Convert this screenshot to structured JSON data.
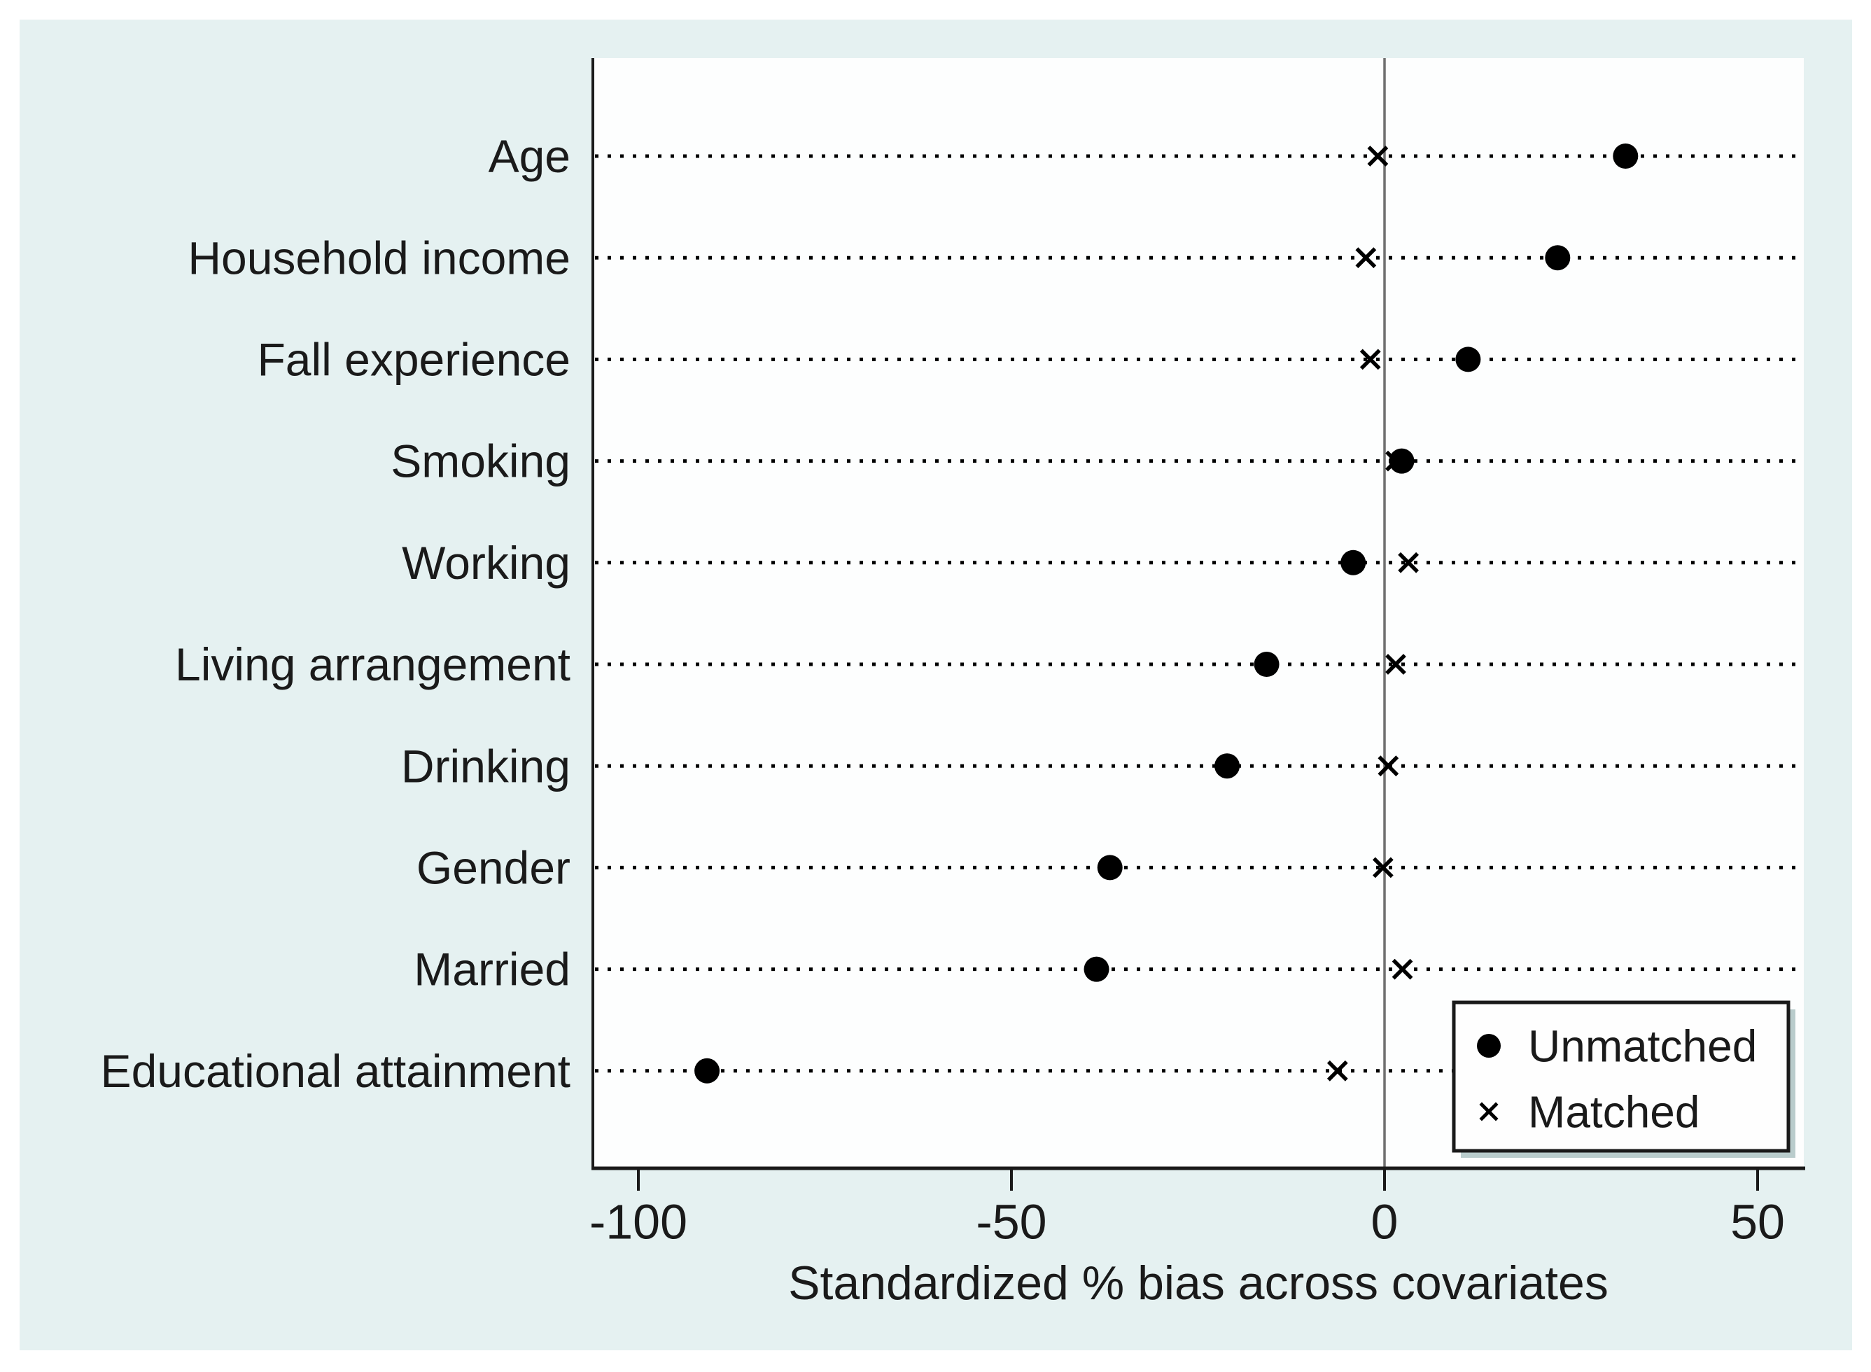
{
  "figure": {
    "kind": "propensity-score matching covariate balance dot plot",
    "xlabel": "Standardized % bias across covariates",
    "legend": {
      "unmatched_label": "Unmatched",
      "matched_label": "Matched"
    }
  },
  "chart_data": {
    "type": "scatter",
    "subtype": "horizontal-dot-plot",
    "title": "",
    "xlabel": "Standardized % bias across covariates",
    "ylabel": "",
    "categories": [
      "Age",
      "Household income",
      "Fall experience",
      "Smoking",
      "Working",
      "Living arrangement",
      "Drinking",
      "Gender",
      "Married",
      "Educational attainment"
    ],
    "series": [
      {
        "name": "Unmatched",
        "marker": "filled-circle",
        "values": [
          32.3,
          23.2,
          11.2,
          2.3,
          -4.2,
          -15.8,
          -21.1,
          -36.8,
          -38.6,
          -90.8
        ]
      },
      {
        "name": "Matched",
        "marker": "x-cross",
        "values": [
          -0.9,
          -2.5,
          -1.9,
          1.5,
          3.2,
          1.5,
          0.5,
          -0.2,
          2.4,
          -6.3
        ]
      }
    ],
    "x_ticks": [
      -100,
      -50,
      0,
      50
    ],
    "xlim": [
      -106,
      56
    ],
    "zero_reference_line": true,
    "grid": "dotted horizontal guide line across each category row",
    "legend_position": "inside bottom-right",
    "colors": {
      "page_background": "#ffffff",
      "panel_background": "#e5f1f1",
      "plot_background": "#fdfefe",
      "marker": "#000000",
      "axis": "#1a1a1a",
      "zero_line": "#6f6f6f",
      "legend_border": "#1a1a1a",
      "legend_background": "#fefefe"
    }
  }
}
